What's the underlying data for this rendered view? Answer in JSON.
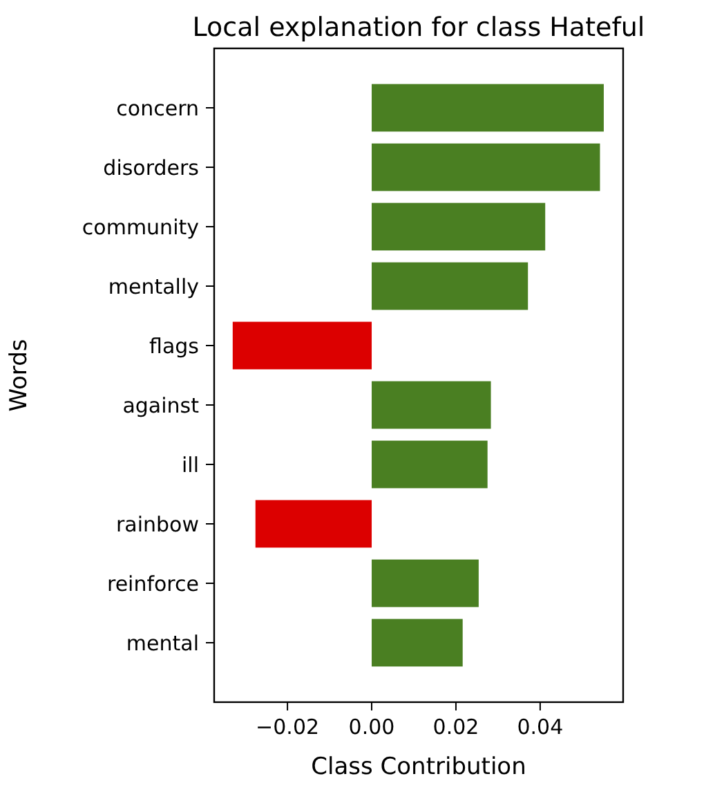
{
  "chart_data": {
    "type": "bar",
    "orientation": "horizontal",
    "title": "Local explanation for class Hateful",
    "xlabel": "Class Contribution",
    "ylabel": "Words",
    "categories": [
      "concern",
      "disorders",
      "community",
      "mentally",
      "flags",
      "against",
      "ill",
      "rainbow",
      "reinforce",
      "mental"
    ],
    "values": [
      0.0551,
      0.0542,
      0.0412,
      0.0371,
      -0.033,
      0.0283,
      0.0275,
      -0.0276,
      0.0254,
      0.0216
    ],
    "colors": [
      "#4a7f22",
      "#4a7f22",
      "#4a7f22",
      "#4a7f22",
      "#dc0000",
      "#4a7f22",
      "#4a7f22",
      "#dc0000",
      "#4a7f22",
      "#4a7f22"
    ],
    "xlim": [
      -0.0374,
      0.0597
    ],
    "xticks": [
      {
        "value": -0.02,
        "label": "−0.02"
      },
      {
        "value": 0,
        "label": "0.00"
      },
      {
        "value": 0.02,
        "label": "0.02"
      },
      {
        "value": 0.04,
        "label": "0.04"
      }
    ],
    "grid": false
  }
}
